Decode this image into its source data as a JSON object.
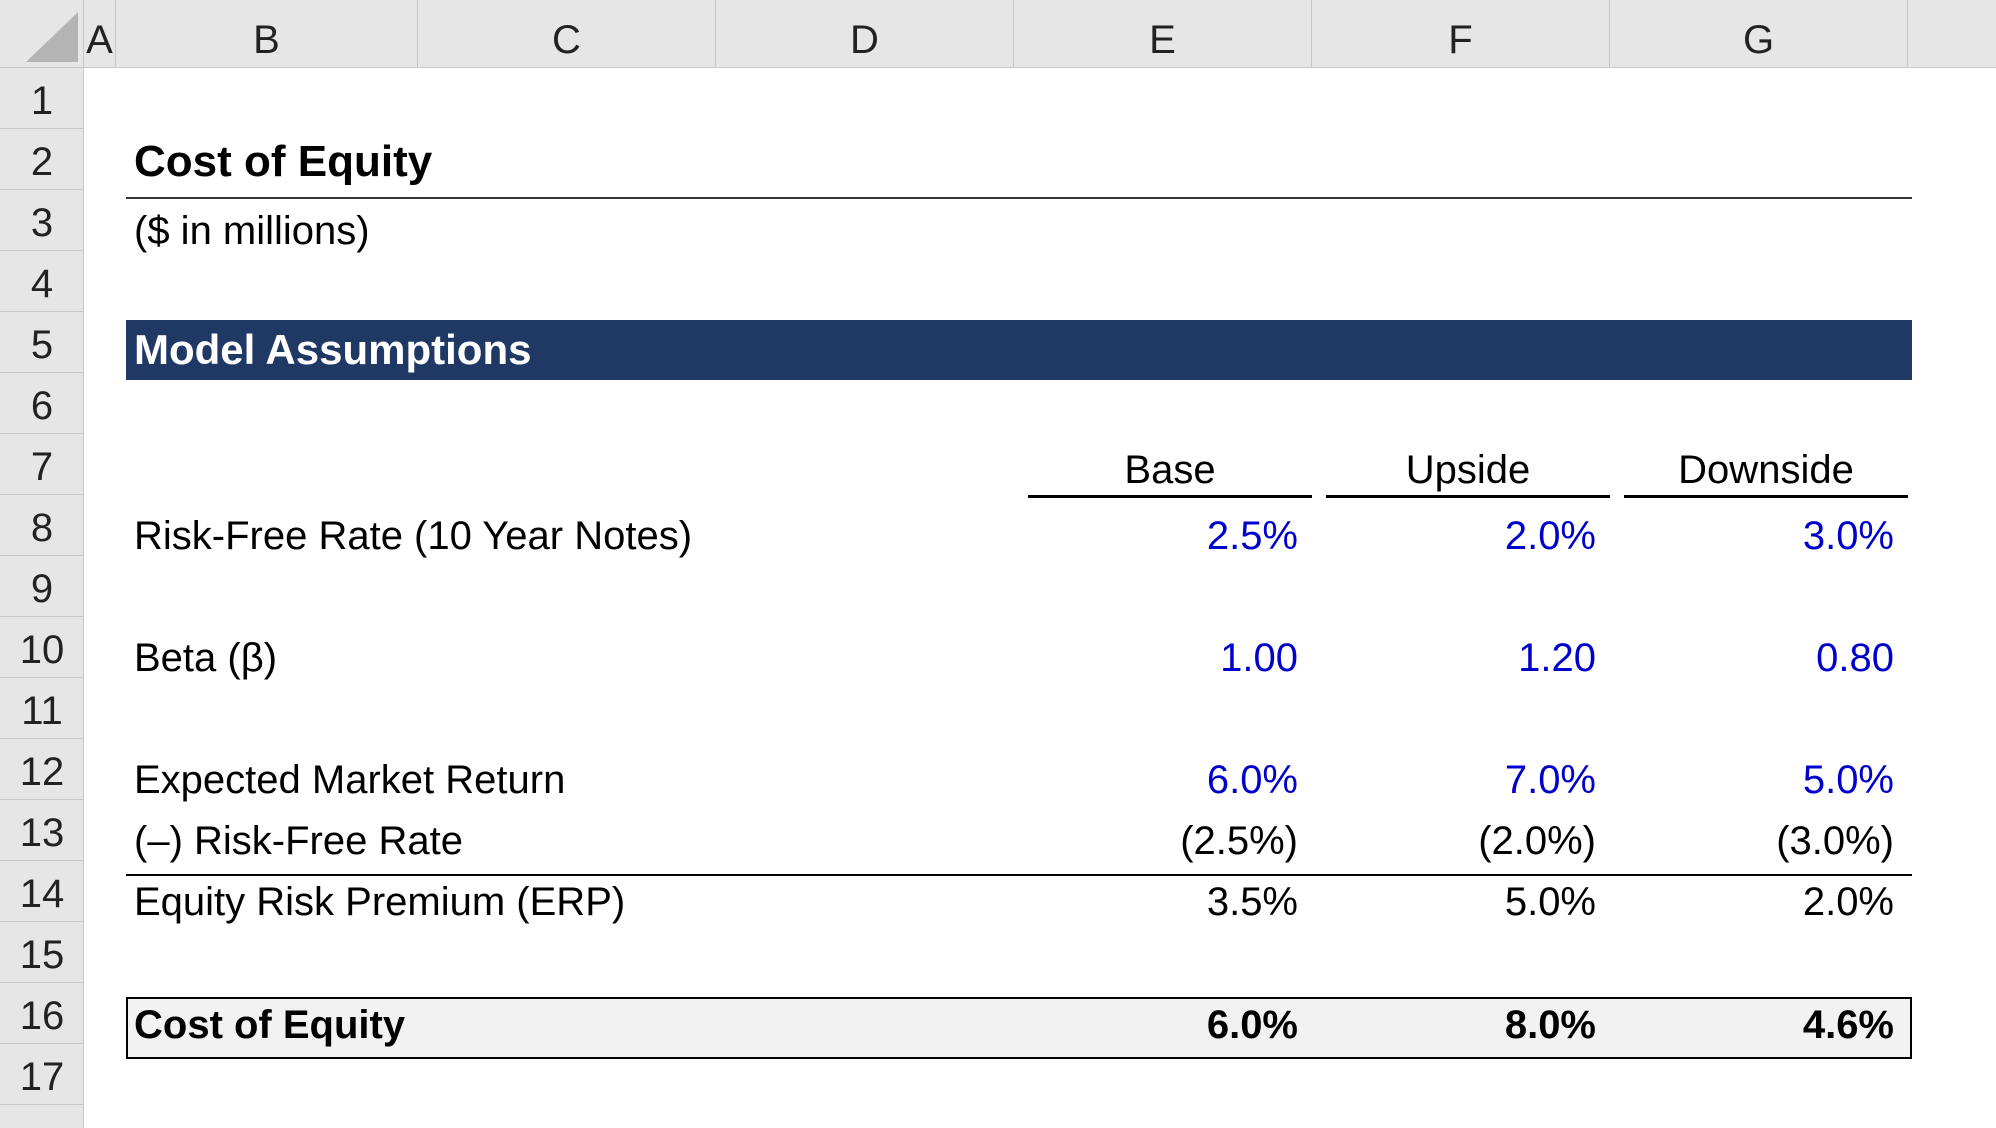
{
  "columns": [
    "A",
    "B",
    "C",
    "D",
    "E",
    "F",
    "G"
  ],
  "rows": [
    "1",
    "2",
    "3",
    "4",
    "5",
    "6",
    "7",
    "8",
    "9",
    "10",
    "11",
    "12",
    "13",
    "14",
    "15",
    "16",
    "17"
  ],
  "sheet": {
    "title": "Cost of Equity",
    "subtitle": "($ in millions)",
    "section": "Model Assumptions",
    "scenarios": [
      "Base",
      "Upside",
      "Downside"
    ],
    "risk_free": {
      "label": "Risk-Free Rate (10 Year Notes)",
      "values": [
        "2.5%",
        "2.0%",
        "3.0%"
      ]
    },
    "beta": {
      "label": "Beta (β)",
      "values": [
        "1.00",
        "1.20",
        "0.80"
      ]
    },
    "market_return": {
      "label": "Expected Market Return",
      "values": [
        "6.0%",
        "7.0%",
        "5.0%"
      ]
    },
    "less_rf": {
      "label": "(–) Risk-Free Rate",
      "values": [
        "(2.5%)",
        "(2.0%)",
        "(3.0%)"
      ]
    },
    "erp": {
      "label": "Equity Risk Premium (ERP)",
      "values": [
        "3.5%",
        "5.0%",
        "2.0%"
      ]
    },
    "cost_of_equity": {
      "label": "Cost of Equity",
      "values": [
        "6.0%",
        "8.0%",
        "4.6%"
      ]
    }
  },
  "colors": {
    "header_bg": "#e6e6e6",
    "banner_bg": "#1f3864",
    "input_blue": "#0000cc",
    "total_bg": "#f2f2f2"
  }
}
